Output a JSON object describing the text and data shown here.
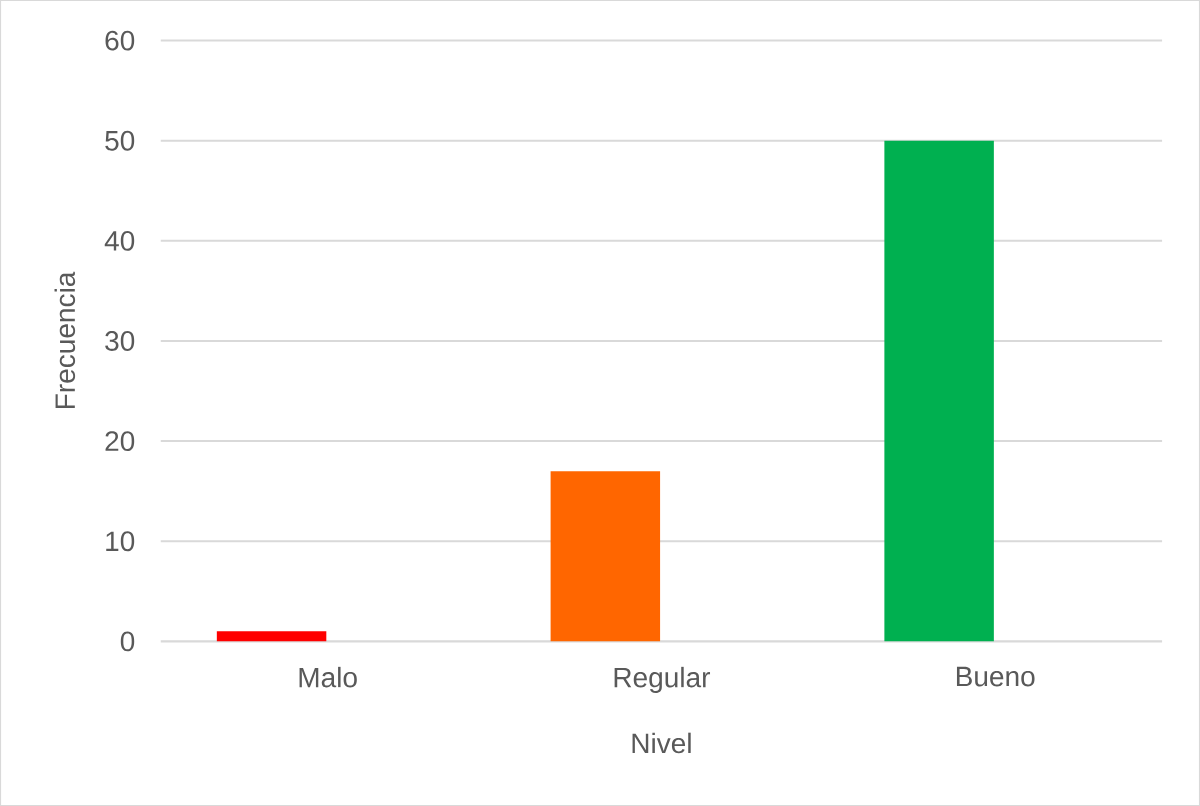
{
  "chart_data": {
    "type": "bar",
    "categories": [
      "Malo",
      "Regular",
      "Bueno"
    ],
    "values": [
      1,
      17,
      50
    ],
    "colors": [
      "#ff0000",
      "#ff6600",
      "#00b050"
    ],
    "xlabel": "Nivel",
    "ylabel": "Frecuencia",
    "ylim": [
      0,
      60
    ],
    "yticks": [
      0,
      10,
      20,
      30,
      40,
      50,
      60
    ],
    "grid": "y",
    "legend": false
  }
}
